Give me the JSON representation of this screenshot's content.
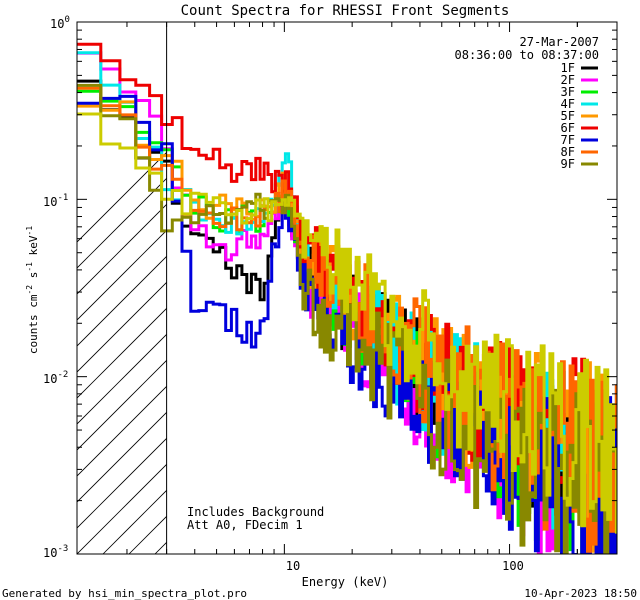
{
  "chart_data": {
    "type": "line",
    "title": "Count Spectra for RHESSI Front Segments",
    "xlabel": "Energy (keV)",
    "ylabel": "counts cm⁻² s⁻¹ keV⁻¹",
    "ylabel_base": "counts cm",
    "ylabel_s": "s",
    "ylabel_kev": "keV",
    "ylabel_exp": "-2",
    "ylabel_exp2": "-1",
    "ylabel_exp3": "-1",
    "x_scale": "log",
    "y_scale": "log",
    "xlim": [
      1.2,
      300
    ],
    "ylim": [
      0.001,
      1.0
    ],
    "x_tick_labels": [
      {
        "value": 10,
        "label": "10"
      },
      {
        "value": 100,
        "label": "100"
      }
    ],
    "y_tick_labels": [
      {
        "value": 1.0,
        "base": "10",
        "exp": "0"
      },
      {
        "value": 0.1,
        "base": "10",
        "exp": "-1"
      },
      {
        "value": 0.01,
        "base": "10",
        "exp": "-2"
      },
      {
        "value": 0.001,
        "base": "10",
        "exp": "-3"
      }
    ],
    "hatched_region": {
      "from": 1.2,
      "to": 3.0
    },
    "date_text": "27-Mar-2007",
    "time_text": "08:36:00 to 08:37:00",
    "annotations": [
      "Includes Background",
      "Att A0, FDecim 1"
    ],
    "footer_left": "Generated by hsi_min_spectra_plot.pro",
    "footer_right": "10-Apr-2023 18:50",
    "series": [
      {
        "name": "1F",
        "color": "#000000",
        "seed": 11,
        "x": [
          1.2,
          1.5,
          2,
          3,
          4,
          6,
          8,
          9,
          10,
          11,
          12,
          15,
          20,
          30,
          50,
          80,
          120,
          200,
          300
        ],
        "y": [
          0.62,
          0.45,
          0.26,
          0.14,
          0.058,
          0.04,
          0.03,
          0.06,
          0.11,
          0.07,
          0.04,
          0.03,
          0.022,
          0.014,
          0.0085,
          0.0055,
          0.0042,
          0.0033,
          0.0027
        ]
      },
      {
        "name": "2F",
        "color": "#ff00ff",
        "seed": 23,
        "x": [
          1.2,
          1.5,
          2,
          3,
          4,
          5,
          6,
          8,
          9,
          10,
          11,
          12,
          15,
          20,
          30,
          50,
          80,
          120,
          200,
          300
        ],
        "y": [
          0.9,
          0.7,
          0.42,
          0.2,
          0.07,
          0.05,
          0.055,
          0.06,
          0.085,
          0.11,
          0.06,
          0.035,
          0.025,
          0.018,
          0.011,
          0.0065,
          0.0045,
          0.0032,
          0.0025,
          0.0022
        ]
      },
      {
        "name": "3F",
        "color": "#00ee00",
        "seed": 37,
        "x": [
          1.2,
          1.5,
          2,
          3,
          4,
          6,
          8,
          9,
          10,
          11,
          12,
          15,
          20,
          30,
          50,
          80,
          120,
          200,
          300
        ],
        "y": [
          0.55,
          0.42,
          0.3,
          0.16,
          0.09,
          0.075,
          0.08,
          0.09,
          0.1,
          0.075,
          0.045,
          0.032,
          0.022,
          0.0135,
          0.0078,
          0.005,
          0.0038,
          0.003,
          0.0026
        ]
      },
      {
        "name": "4F",
        "color": "#00e8e8",
        "seed": 41,
        "x": [
          1.2,
          1.5,
          2,
          3,
          4,
          6,
          8,
          9,
          10,
          10.5,
          11,
          12,
          15,
          20,
          30,
          50,
          80,
          120,
          200,
          300
        ],
        "y": [
          0.85,
          0.6,
          0.38,
          0.13,
          0.085,
          0.075,
          0.08,
          0.1,
          0.16,
          0.22,
          0.1,
          0.05,
          0.034,
          0.024,
          0.0145,
          0.0085,
          0.0057,
          0.0042,
          0.0033,
          0.0028
        ]
      },
      {
        "name": "5F",
        "color": "#ff9900",
        "seed": 53,
        "x": [
          1.2,
          1.5,
          2,
          3,
          4,
          6,
          8,
          9,
          10,
          11,
          12,
          15,
          20,
          30,
          50,
          80,
          120,
          200,
          300
        ],
        "y": [
          0.38,
          0.36,
          0.3,
          0.17,
          0.1,
          0.085,
          0.09,
          0.095,
          0.12,
          0.085,
          0.055,
          0.038,
          0.027,
          0.017,
          0.0098,
          0.0064,
          0.0048,
          0.0037,
          0.0031
        ]
      },
      {
        "name": "6F",
        "color": "#ee0000",
        "seed": 67,
        "x": [
          1.2,
          1.5,
          2,
          3,
          4,
          6,
          8,
          9,
          10,
          11,
          12,
          15,
          20,
          30,
          50,
          80,
          120,
          200,
          300
        ],
        "y": [
          0.95,
          0.72,
          0.5,
          0.3,
          0.2,
          0.15,
          0.14,
          0.13,
          0.13,
          0.1,
          0.058,
          0.04,
          0.028,
          0.017,
          0.0098,
          0.0064,
          0.0048,
          0.0037,
          0.0031
        ]
      },
      {
        "name": "7F",
        "color": "#0000dd",
        "seed": 79,
        "x": [
          1.2,
          1.5,
          2,
          3,
          4,
          5,
          6,
          7,
          8,
          9,
          10,
          11,
          12,
          15,
          20,
          30,
          50,
          80,
          120,
          200,
          300
        ],
        "y": [
          0.42,
          0.38,
          0.32,
          0.2,
          0.028,
          0.022,
          0.02,
          0.017,
          0.019,
          0.05,
          0.1,
          0.065,
          0.035,
          0.024,
          0.016,
          0.01,
          0.0059,
          0.004,
          0.003,
          0.0024,
          0.0021
        ]
      },
      {
        "name": "8F",
        "color": "#ff6600",
        "seed": 83,
        "x": [
          1.2,
          1.5,
          2,
          3,
          4,
          6,
          8,
          9,
          10,
          11,
          12,
          15,
          20,
          30,
          50,
          80,
          120,
          200,
          300
        ],
        "y": [
          0.48,
          0.4,
          0.3,
          0.14,
          0.085,
          0.075,
          0.08,
          0.085,
          0.11,
          0.085,
          0.058,
          0.04,
          0.028,
          0.017,
          0.0098,
          0.0064,
          0.0048,
          0.0037,
          0.0031
        ]
      },
      {
        "name": "9F",
        "color": "#888800",
        "seed": 97,
        "x": [
          1.2,
          1.5,
          2,
          3,
          4,
          6,
          8,
          9,
          10,
          11,
          12,
          15,
          20,
          30,
          50,
          80,
          120,
          200,
          300
        ],
        "y": [
          0.6,
          0.35,
          0.25,
          0.07,
          0.075,
          0.085,
          0.09,
          0.09,
          0.1,
          0.065,
          0.032,
          0.022,
          0.016,
          0.0105,
          0.0062,
          0.004,
          0.003,
          0.0025,
          0.0022
        ]
      },
      {
        "name": "",
        "color": "#cccc00",
        "seed": 101,
        "legend": false,
        "x": [
          1.2,
          1.5,
          2,
          3,
          4,
          6,
          8,
          9,
          10,
          11,
          12,
          15,
          20,
          30,
          50,
          80,
          120,
          200,
          300
        ],
        "y": [
          0.3,
          0.26,
          0.2,
          0.1,
          0.09,
          0.085,
          0.09,
          0.09,
          0.1,
          0.09,
          0.07,
          0.048,
          0.034,
          0.02,
          0.0115,
          0.0072,
          0.0052,
          0.0039,
          0.0032
        ]
      }
    ]
  }
}
